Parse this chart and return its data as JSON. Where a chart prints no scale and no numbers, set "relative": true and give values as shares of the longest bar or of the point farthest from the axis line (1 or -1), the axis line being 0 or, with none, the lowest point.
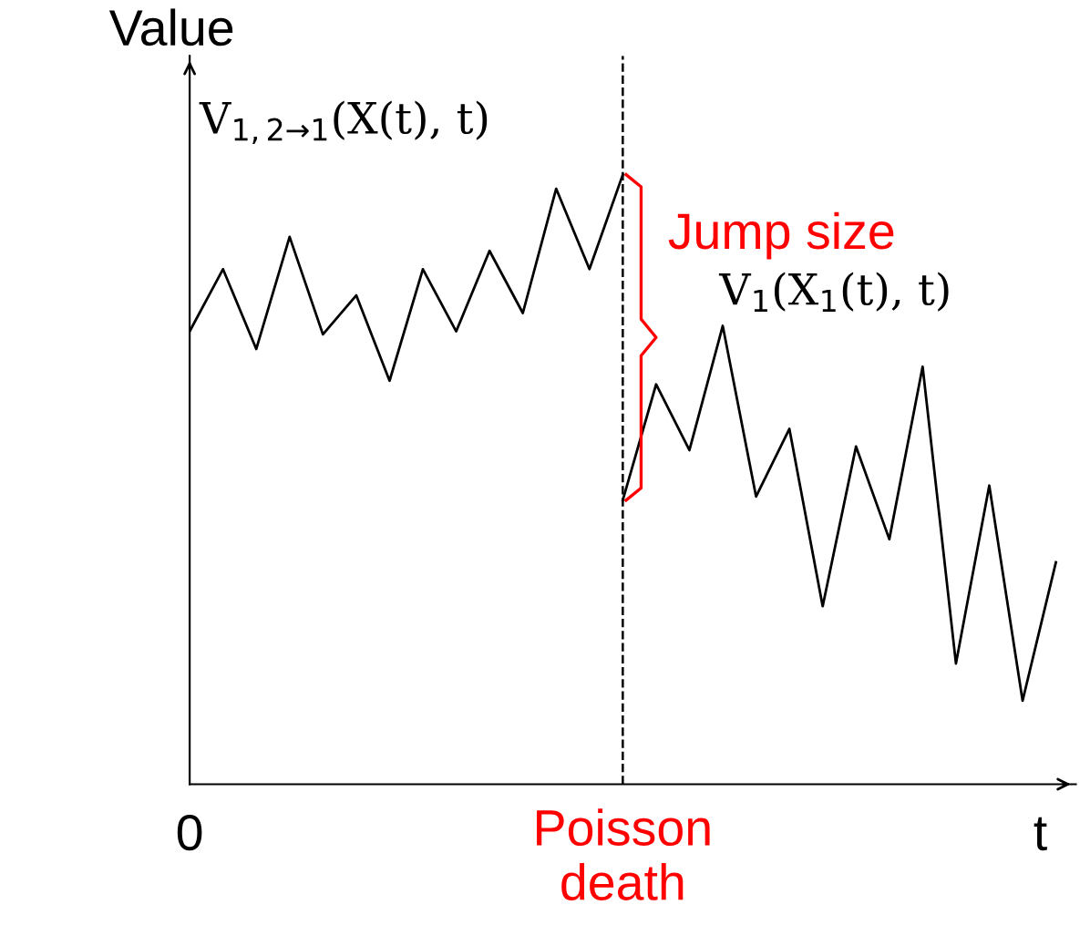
{
  "chart_data": {
    "type": "line",
    "relative": true,
    "xlabel": "t",
    "ylabel": "Value",
    "categories": [
      null,
      null,
      null,
      null,
      null,
      null,
      null,
      null,
      null,
      null,
      null,
      null,
      null,
      null,
      null,
      null,
      null,
      null,
      null,
      null,
      null,
      null,
      null,
      null,
      null,
      null,
      null
    ],
    "series": [
      {
        "name": "V$_{1,2→1}$(X(t), t)",
        "color": "#000000",
        "values": [
          0.743,
          0.845,
          0.714,
          0.898,
          0.738,
          0.802,
          0.662,
          0.845,
          0.743,
          0.875,
          0.773,
          0.977,
          0.845,
          1.0,
          null,
          null,
          null,
          null,
          null,
          null,
          null,
          null,
          null,
          null,
          null,
          null,
          null
        ]
      },
      {
        "name": "V$_{1}$(X$_{1}$(t), t)",
        "color": "#000000",
        "values": [
          null,
          null,
          null,
          null,
          null,
          null,
          null,
          null,
          null,
          null,
          null,
          null,
          null,
          0.466,
          0.656,
          0.548,
          0.752,
          0.472,
          0.583,
          0.292,
          0.554,
          0.402,
          0.685,
          0.198,
          0.49,
          0.137,
          0.364
        ]
      }
    ],
    "annotations": [
      "Jump size",
      "0",
      "Poisson\ndeath"
    ],
    "marker": "none",
    "line_style": "solid"
  }
}
